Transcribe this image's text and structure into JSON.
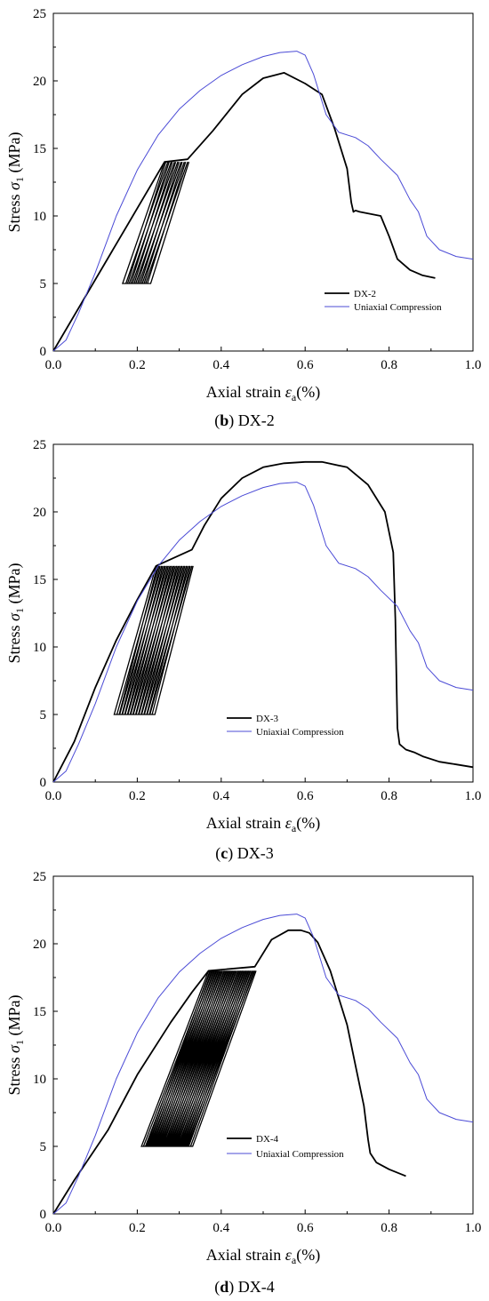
{
  "chart_data": [
    {
      "type": "line",
      "caption_letter": "b",
      "caption_name": "DX-2",
      "xlabel_main": "Axial strain ",
      "xlabel_sym": "ε",
      "xlabel_sub": "a",
      "xlabel_unit": "(%)",
      "ylabel_main": "Stress ",
      "ylabel_sym": "σ",
      "ylabel_sub": "1",
      "ylabel_unit": " (MPa)",
      "xlim": [
        0,
        1.0
      ],
      "ylim": [
        0,
        25
      ],
      "xticks": [
        "0.0",
        "0.2",
        "0.4",
        "0.6",
        "0.8",
        "1.0"
      ],
      "yticks": [
        "0",
        "5",
        "10",
        "15",
        "20",
        "25"
      ],
      "legend_position": "lower-right",
      "series": [
        {
          "name": "DX-2",
          "color": "#000000",
          "cycles": {
            "start": 0.265,
            "end": 0.32,
            "count": 8,
            "width": 0.1,
            "low": 5,
            "high": 14
          },
          "x": [
            0,
            0.265,
            0.32,
            0.38,
            0.45,
            0.5,
            0.55,
            0.6,
            0.64,
            0.67,
            0.7,
            0.71,
            0.715,
            0.72,
            0.73,
            0.78,
            0.8,
            0.82,
            0.85,
            0.88,
            0.91
          ],
          "y": [
            0,
            14,
            14.2,
            16.3,
            19,
            20.2,
            20.6,
            19.8,
            19,
            16.5,
            13.5,
            11,
            10.3,
            10.4,
            10.3,
            10,
            8.5,
            6.8,
            6,
            5.6,
            5.4
          ]
        },
        {
          "name": "Uniaxial Compression",
          "color": "#4b4bd6",
          "x": [
            0,
            0.03,
            0.06,
            0.1,
            0.15,
            0.2,
            0.25,
            0.3,
            0.35,
            0.4,
            0.45,
            0.5,
            0.54,
            0.58,
            0.6,
            0.62,
            0.65,
            0.68,
            0.72,
            0.75,
            0.78,
            0.82,
            0.85,
            0.87,
            0.89,
            0.92,
            0.96,
            1.0
          ],
          "y": [
            0,
            0.8,
            2.8,
            5.8,
            10,
            13.4,
            16,
            17.9,
            19.3,
            20.4,
            21.2,
            21.8,
            22.1,
            22.2,
            21.9,
            20.5,
            17.5,
            16.2,
            15.8,
            15.2,
            14.2,
            13,
            11.2,
            10.3,
            8.5,
            7.5,
            7,
            6.8
          ]
        }
      ]
    },
    {
      "type": "line",
      "caption_letter": "c",
      "caption_name": "DX-3",
      "xlabel_main": "Axial strain ",
      "xlabel_sym": "ε",
      "xlabel_sub": "a",
      "xlabel_unit": "(%)",
      "ylabel_main": "Stress ",
      "ylabel_sym": "σ",
      "ylabel_sub": "1",
      "ylabel_unit": " (MPa)",
      "xlim": [
        0,
        1.0
      ],
      "ylim": [
        0,
        25
      ],
      "xticks": [
        "0.0",
        "0.2",
        "0.4",
        "0.6",
        "0.8",
        "1.0"
      ],
      "yticks": [
        "0",
        "5",
        "10",
        "15",
        "20",
        "25"
      ],
      "legend_position": "lower-center",
      "series": [
        {
          "name": "DX-3",
          "color": "#000000",
          "cycles": {
            "start": 0.245,
            "end": 0.33,
            "count": 14,
            "width": 0.1,
            "low": 5,
            "high": 16
          },
          "x": [
            0,
            0.05,
            0.1,
            0.15,
            0.2,
            0.245,
            0.33,
            0.36,
            0.4,
            0.45,
            0.5,
            0.55,
            0.6,
            0.64,
            0.7,
            0.75,
            0.79,
            0.81,
            0.815,
            0.818,
            0.82,
            0.825,
            0.84,
            0.86,
            0.88,
            0.92,
            0.96,
            1.0
          ],
          "y": [
            0,
            3,
            7,
            10.5,
            13.5,
            16,
            17.2,
            19,
            21,
            22.5,
            23.3,
            23.6,
            23.7,
            23.7,
            23.3,
            22,
            20,
            17,
            12,
            7,
            4,
            2.8,
            2.4,
            2.2,
            1.9,
            1.5,
            1.3,
            1.1
          ]
        },
        {
          "name": "Uniaxial Compression",
          "color": "#4b4bd6",
          "x": [
            0,
            0.03,
            0.06,
            0.1,
            0.15,
            0.2,
            0.25,
            0.3,
            0.35,
            0.4,
            0.45,
            0.5,
            0.54,
            0.58,
            0.6,
            0.62,
            0.65,
            0.68,
            0.72,
            0.75,
            0.78,
            0.82,
            0.85,
            0.87,
            0.89,
            0.92,
            0.96,
            1.0
          ],
          "y": [
            0,
            0.8,
            2.8,
            5.8,
            10,
            13.4,
            16,
            17.9,
            19.3,
            20.4,
            21.2,
            21.8,
            22.1,
            22.2,
            21.9,
            20.5,
            17.5,
            16.2,
            15.8,
            15.2,
            14.2,
            13,
            11.2,
            10.3,
            8.5,
            7.5,
            7,
            6.8
          ]
        }
      ]
    },
    {
      "type": "line",
      "caption_letter": "d",
      "caption_name": "DX-4",
      "xlabel_main": "Axial strain ",
      "xlabel_sym": "ε",
      "xlabel_sub": "a",
      "xlabel_unit": "(%)",
      "ylabel_main": "Stress ",
      "ylabel_sym": "σ",
      "ylabel_sub": "1",
      "ylabel_unit": " (MPa)",
      "xlim": [
        0,
        1.0
      ],
      "ylim": [
        0,
        25
      ],
      "xticks": [
        "0.0",
        "0.2",
        "0.4",
        "0.6",
        "0.8",
        "1.0"
      ],
      "yticks": [
        "0",
        "5",
        "10",
        "15",
        "20",
        "25"
      ],
      "legend_position": "lower-center",
      "series": [
        {
          "name": "DX-4",
          "color": "#000000",
          "cycles": {
            "start": 0.37,
            "end": 0.48,
            "count": 24,
            "width": 0.16,
            "low": 5,
            "high": 18
          },
          "x": [
            0,
            0.05,
            0.13,
            0.2,
            0.28,
            0.33,
            0.37,
            0.48,
            0.52,
            0.56,
            0.59,
            0.61,
            0.63,
            0.66,
            0.7,
            0.72,
            0.74,
            0.75,
            0.755,
            0.77,
            0.8,
            0.84
          ],
          "y": [
            0,
            2.5,
            6.2,
            10.3,
            14.2,
            16.4,
            18,
            18.3,
            20.3,
            21,
            21,
            20.8,
            20.1,
            18,
            14,
            11,
            8,
            5.5,
            4.5,
            3.8,
            3.3,
            2.8
          ]
        },
        {
          "name": "Uniaxial Compression",
          "color": "#4b4bd6",
          "x": [
            0,
            0.03,
            0.06,
            0.1,
            0.15,
            0.2,
            0.25,
            0.3,
            0.35,
            0.4,
            0.45,
            0.5,
            0.54,
            0.58,
            0.6,
            0.62,
            0.65,
            0.68,
            0.72,
            0.75,
            0.78,
            0.82,
            0.85,
            0.87,
            0.89,
            0.92,
            0.96,
            1.0
          ],
          "y": [
            0,
            0.8,
            2.8,
            5.8,
            10,
            13.4,
            16,
            17.9,
            19.3,
            20.4,
            21.2,
            21.8,
            22.1,
            22.2,
            21.9,
            20.5,
            17.5,
            16.2,
            15.8,
            15.2,
            14.2,
            13,
            11.2,
            10.3,
            8.5,
            7.5,
            7,
            6.8
          ]
        }
      ]
    }
  ]
}
